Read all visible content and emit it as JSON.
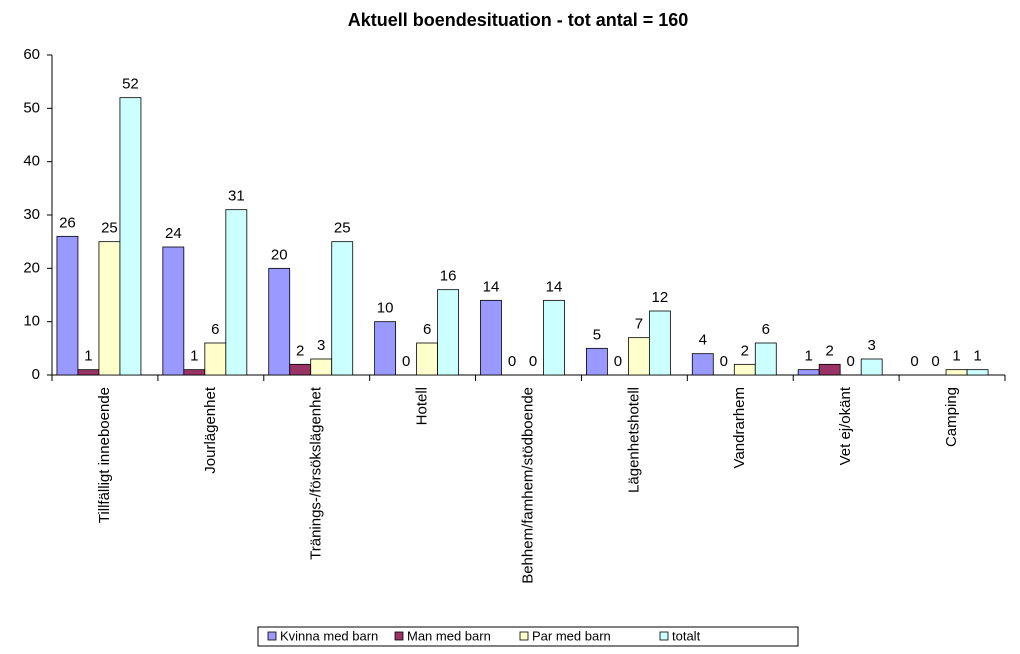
{
  "chart_data": {
    "type": "bar",
    "title": "Aktuell boendesituation - tot antal = 160",
    "categories": [
      "Tillfälligt inneboende",
      "Jourlägenhet",
      "Tränings-/försökslägenhet",
      "Hotell",
      "Behhem/famhem/stödboende",
      "Lägenhetshotell",
      "Vandrarhem",
      "Vet ej/okänt",
      "Camping"
    ],
    "series": [
      {
        "name": "Kvinna med barn",
        "color": "#9999FF",
        "values": [
          26,
          24,
          20,
          10,
          14,
          5,
          4,
          1,
          0
        ]
      },
      {
        "name": "Man med barn",
        "color": "#993366",
        "values": [
          1,
          1,
          2,
          0,
          0,
          0,
          0,
          2,
          0
        ]
      },
      {
        "name": "Par med barn",
        "color": "#FFFFCC",
        "values": [
          25,
          6,
          3,
          6,
          0,
          7,
          2,
          0,
          1
        ]
      },
      {
        "name": "totalt",
        "color": "#CCFFFF",
        "values": [
          52,
          31,
          25,
          16,
          14,
          12,
          6,
          3,
          1
        ]
      }
    ],
    "ylim": [
      0,
      60
    ],
    "yticks": [
      0,
      10,
      20,
      30,
      40,
      50,
      60
    ],
    "grid": false,
    "legend": "bottom"
  }
}
